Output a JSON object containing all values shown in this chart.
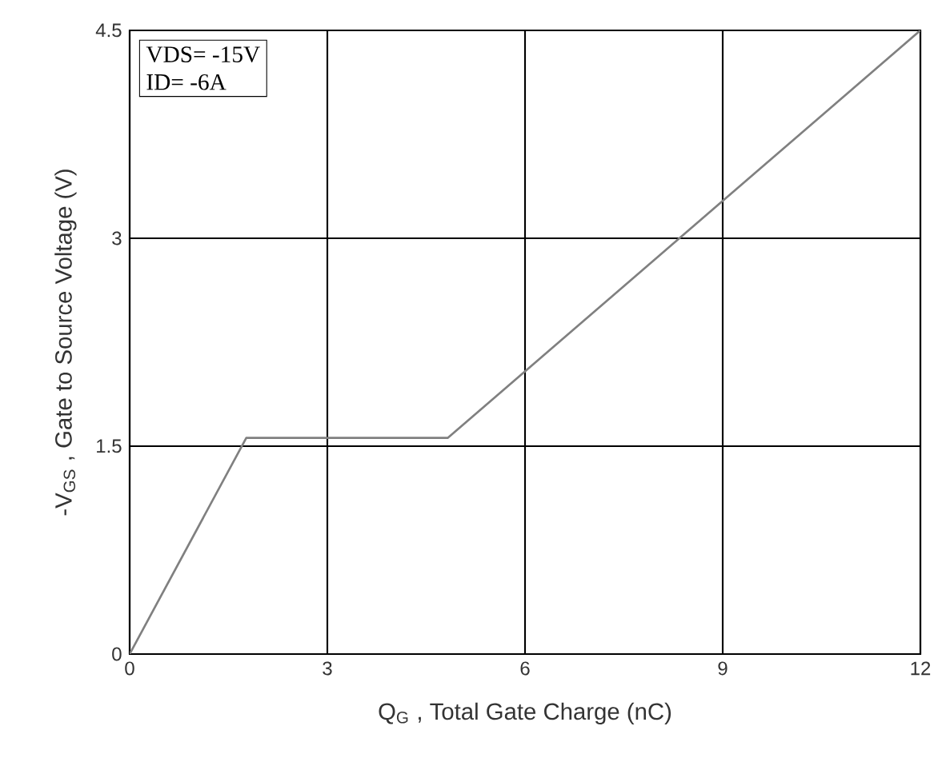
{
  "chart_data": {
    "type": "line",
    "xlabel": "Q$_{G}$ , Total Gate Charge (nC)",
    "ylabel": "-V$_{GS}$ , Gate to Source Voltage (V)",
    "annotations": [
      "VDS= -15V",
      "ID= -6A"
    ],
    "x": [
      0,
      1.77,
      4.83,
      12
    ],
    "series": [
      {
        "color": "#808080",
        "values": [
          0,
          1.56,
          1.56,
          4.5
        ]
      }
    ],
    "xlim": [
      0,
      12
    ],
    "ylim": [
      0,
      4.5
    ],
    "xticks": [
      0,
      3,
      6,
      9,
      12
    ],
    "yticks": [
      0,
      1.5,
      3,
      4.5
    ],
    "grid": true
  }
}
